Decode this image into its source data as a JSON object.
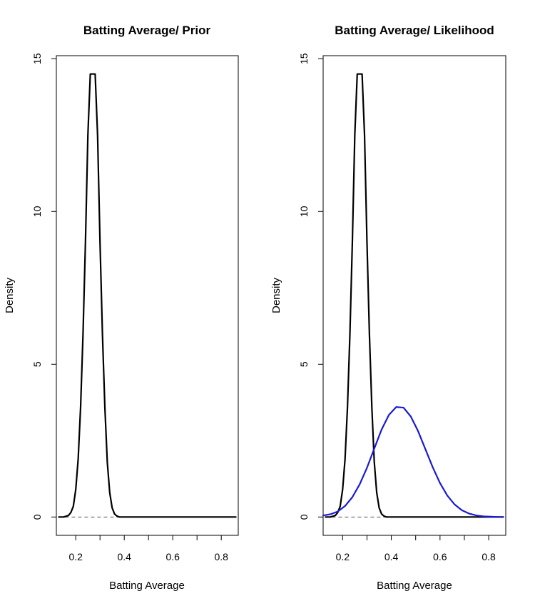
{
  "chart_data": [
    {
      "type": "line",
      "title": "Batting Average/ Prior",
      "xlabel": "Batting Average",
      "ylabel": "Density",
      "xlim": [
        0.12,
        0.87
      ],
      "ylim": [
        -0.6,
        15.1
      ],
      "xticks": [
        0.2,
        0.4,
        0.6,
        0.8
      ],
      "xtick_labels": [
        "0.2",
        "0.4",
        "0.6",
        "0.8"
      ],
      "yticks": [
        0,
        5,
        10,
        15
      ],
      "ytick_labels": [
        "0",
        "5",
        "10",
        "15"
      ],
      "grid": false,
      "baseline": {
        "y": 0,
        "x_range": [
          0.13,
          0.86
        ],
        "style": "dashed",
        "color": "#555555"
      },
      "series": [
        {
          "color": "#000000",
          "style": "solid",
          "x": [
            0.13,
            0.15,
            0.17,
            0.18,
            0.19,
            0.2,
            0.21,
            0.22,
            0.23,
            0.24,
            0.25,
            0.26,
            0.27,
            0.28,
            0.29,
            0.3,
            0.31,
            0.32,
            0.33,
            0.34,
            0.35,
            0.36,
            0.37,
            0.38,
            0.4,
            0.5,
            0.6,
            0.7,
            0.8,
            0.86
          ],
          "y": [
            0.0,
            0.0,
            0.05,
            0.15,
            0.35,
            0.9,
            1.9,
            3.6,
            6.0,
            9.0,
            12.5,
            14.5,
            14.5,
            14.5,
            12.5,
            9.0,
            6.0,
            3.6,
            1.8,
            0.8,
            0.3,
            0.1,
            0.03,
            0.0,
            0.0,
            0.0,
            0.0,
            0.0,
            0.0,
            0.0
          ]
        }
      ]
    },
    {
      "type": "line",
      "title": "Batting Average/ Likelihood",
      "xlabel": "Batting Average",
      "ylabel": "Density",
      "xlim": [
        0.12,
        0.87
      ],
      "ylim": [
        -0.6,
        15.1
      ],
      "xticks": [
        0.2,
        0.4,
        0.6,
        0.8
      ],
      "xtick_labels": [
        "0.2",
        "0.4",
        "0.6",
        "0.8"
      ],
      "yticks": [
        0,
        5,
        10,
        15
      ],
      "ytick_labels": [
        "0",
        "5",
        "10",
        "15"
      ],
      "grid": false,
      "baseline": {
        "y": 0,
        "x_range": [
          0.13,
          0.86
        ],
        "style": "dashed",
        "color": "#555555"
      },
      "series": [
        {
          "color": "#000000",
          "style": "solid",
          "x": [
            0.13,
            0.15,
            0.17,
            0.18,
            0.19,
            0.2,
            0.21,
            0.22,
            0.23,
            0.24,
            0.25,
            0.26,
            0.27,
            0.28,
            0.29,
            0.3,
            0.31,
            0.32,
            0.33,
            0.34,
            0.35,
            0.36,
            0.37,
            0.38,
            0.4,
            0.5,
            0.6,
            0.7,
            0.8,
            0.86
          ],
          "y": [
            0.0,
            0.0,
            0.05,
            0.15,
            0.35,
            0.9,
            1.9,
            3.6,
            6.0,
            9.0,
            12.5,
            14.5,
            14.5,
            14.5,
            12.5,
            9.0,
            6.0,
            3.6,
            1.8,
            0.8,
            0.3,
            0.1,
            0.03,
            0.0,
            0.0,
            0.0,
            0.0,
            0.0,
            0.0,
            0.0
          ]
        },
        {
          "color": "#1a1ad6",
          "style": "solid",
          "x": [
            0.12,
            0.15,
            0.18,
            0.21,
            0.24,
            0.27,
            0.3,
            0.33,
            0.36,
            0.39,
            0.42,
            0.45,
            0.48,
            0.51,
            0.54,
            0.57,
            0.6,
            0.63,
            0.66,
            0.69,
            0.72,
            0.75,
            0.78,
            0.81,
            0.84,
            0.86
          ],
          "y": [
            0.05,
            0.09,
            0.18,
            0.36,
            0.65,
            1.07,
            1.61,
            2.24,
            2.86,
            3.34,
            3.6,
            3.58,
            3.29,
            2.81,
            2.22,
            1.63,
            1.11,
            0.7,
            0.41,
            0.22,
            0.11,
            0.05,
            0.02,
            0.01,
            0.0,
            0.0
          ]
        }
      ]
    }
  ]
}
